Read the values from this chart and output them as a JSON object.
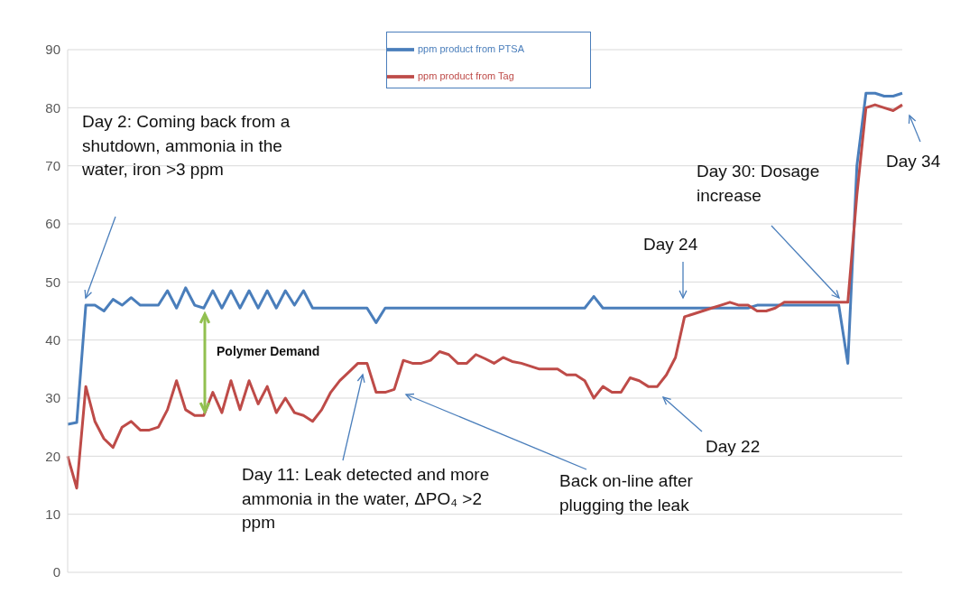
{
  "chart_data": {
    "type": "line",
    "categories": [
      null,
      null,
      null,
      null,
      null,
      null,
      null,
      null,
      null,
      null,
      null,
      null,
      null,
      null,
      null,
      null,
      null,
      null,
      null,
      null,
      null,
      null,
      null,
      null,
      null,
      null,
      null,
      null,
      null,
      null,
      null,
      null,
      null,
      null,
      null,
      null,
      null,
      null,
      null,
      null,
      null,
      null,
      null,
      null,
      null,
      null,
      null,
      null,
      null,
      null,
      null,
      null,
      null,
      null,
      null,
      null,
      null,
      null,
      null,
      null,
      null,
      null,
      null,
      null,
      null,
      null,
      null,
      null,
      null,
      null,
      null,
      null,
      null,
      null,
      null,
      null,
      null,
      null,
      null,
      null,
      null,
      null,
      null,
      null,
      null,
      null,
      null,
      null,
      null,
      null,
      null,
      null,
      null
    ],
    "series": [
      {
        "name": "ppm product from PTSA",
        "color": "#4a7ebb",
        "values": [
          25.5,
          25.8,
          46,
          46,
          45,
          47,
          46,
          47.3,
          46,
          46,
          46,
          48.5,
          45.5,
          49,
          46,
          45.5,
          48.5,
          45.5,
          48.5,
          45.5,
          48.5,
          45.5,
          48.5,
          45.5,
          48.5,
          46,
          48.5,
          45.5,
          45.5,
          45.5,
          45.5,
          45.5,
          45.5,
          45.5,
          43,
          45.5,
          45.5,
          45.5,
          45.5,
          45.5,
          45.5,
          45.5,
          45.5,
          45.5,
          45.5,
          45.5,
          45.5,
          45.5,
          45.5,
          45.5,
          45.5,
          45.5,
          45.5,
          45.5,
          45.5,
          45.5,
          45.5,
          45.5,
          47.5,
          45.5,
          45.5,
          45.5,
          45.5,
          45.5,
          45.5,
          45.5,
          45.5,
          45.5,
          45.5,
          45.5,
          45.5,
          45.5,
          45.5,
          45.5,
          45.5,
          45.5,
          46,
          46,
          46,
          46,
          46,
          46,
          46,
          46,
          46,
          46,
          36,
          70,
          82.5,
          82.5,
          82,
          82,
          82.5
        ]
      },
      {
        "name": "ppm product from Tag",
        "color": "#be4b48",
        "values": [
          20,
          14.5,
          32,
          26,
          23,
          21.5,
          25,
          26,
          24.5,
          24.5,
          25,
          28,
          33,
          28,
          27,
          27,
          31,
          27.5,
          33,
          28,
          33,
          29,
          32,
          27.5,
          30,
          27.5,
          27,
          26,
          28,
          31,
          33,
          34.5,
          36,
          36,
          31,
          31,
          31.5,
          36.5,
          36,
          36,
          36.5,
          38,
          37.5,
          36,
          36,
          37.5,
          36.8,
          36,
          37,
          36.3,
          36,
          35.5,
          35,
          35,
          35,
          34,
          34,
          33,
          30,
          32,
          31,
          31,
          33.5,
          33,
          32,
          32,
          34,
          37,
          44,
          44.5,
          45,
          45.5,
          46,
          46.5,
          46,
          46,
          45,
          45,
          45.5,
          46.5,
          46.5,
          46.5,
          46.5,
          46.5,
          46.5,
          46.5,
          46.5,
          65,
          80,
          80.5,
          80,
          79.5,
          80.5
        ]
      }
    ],
    "ylim": [
      0,
      90
    ],
    "yticks": [
      0,
      10,
      20,
      30,
      40,
      50,
      60,
      70,
      80,
      90
    ],
    "grid": "y",
    "legend": "top",
    "tick_labels": "y",
    "marker": "none",
    "line_style": "solid",
    "annotations": [
      "Day 2: Coming back from a shutdown, ammonia in the water, iron >3 ppm",
      "Polymer Demand",
      "Day 11: Leak detected and more ammonia in the water, ΔPO₄ >2 ppm",
      "Back on-line after plugging the leak",
      "Day 22",
      "Day 24",
      "Day 30: Dosage increase",
      "Day 34"
    ]
  }
}
